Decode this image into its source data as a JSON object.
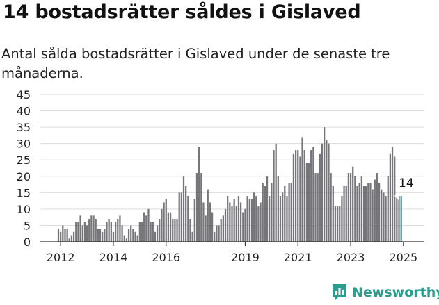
{
  "title": "14 bostadsrätter såldes i Gislaved",
  "subtitle": "Antal sålda bostadsrätter i Gislaved under de senaste tre månaderna.",
  "brand": {
    "name": "Newsworthy",
    "color": "#2a9d8f"
  },
  "colors": {
    "bar": "#76757a",
    "highlight": "#25a3a3",
    "grid": "#dddddd",
    "axis": "#333333"
  },
  "chart_data": {
    "type": "bar",
    "title": "14 bostadsrätter såldes i Gislaved",
    "xlabel": "",
    "ylabel": "",
    "ylim": [
      0,
      45
    ],
    "yticks": [
      0,
      5,
      10,
      15,
      20,
      25,
      30,
      35,
      40,
      45
    ],
    "xtick_labels": [
      "2012",
      "2014",
      "2016",
      "2019",
      "2021",
      "2023",
      "2025"
    ],
    "xtick_years": [
      2012,
      2014,
      2016,
      2019,
      2021,
      2023,
      2025
    ],
    "start": "2011-12",
    "end": "2025-02",
    "grid": true,
    "annotation": {
      "text": "14",
      "target": "2025-02",
      "value": 14
    },
    "values": [
      4,
      3,
      5,
      4,
      4,
      1,
      2,
      3,
      6,
      6,
      8,
      5,
      6,
      5,
      7,
      8,
      8,
      7,
      4,
      4,
      3,
      4,
      6,
      7,
      6,
      3,
      6,
      7,
      8,
      5,
      2,
      1,
      4,
      5,
      4,
      3,
      2,
      6,
      6,
      9,
      8,
      10,
      6,
      6,
      3,
      5,
      7,
      10,
      12,
      13,
      9,
      9,
      7,
      7,
      7,
      15,
      15,
      20,
      17,
      14,
      7,
      3,
      13,
      21,
      29,
      21,
      12,
      8,
      16,
      12,
      9,
      3,
      5,
      5,
      7,
      8,
      10,
      14,
      12,
      11,
      13,
      11,
      14,
      12,
      9,
      10,
      14,
      13,
      13,
      15,
      14,
      11,
      12,
      18,
      17,
      20,
      14,
      18,
      28,
      30,
      20,
      14,
      15,
      17,
      14,
      18,
      18,
      27,
      28,
      28,
      26,
      32,
      28,
      24,
      24,
      28,
      29,
      21,
      21,
      27,
      30,
      35,
      31,
      30,
      21,
      17,
      11,
      11,
      11,
      14,
      17,
      17,
      21,
      21,
      23,
      20,
      17,
      18,
      20,
      17,
      17,
      18,
      18,
      16,
      19,
      21,
      18,
      16,
      15,
      14,
      20,
      27,
      29,
      26,
      14,
      14,
      14
    ]
  }
}
